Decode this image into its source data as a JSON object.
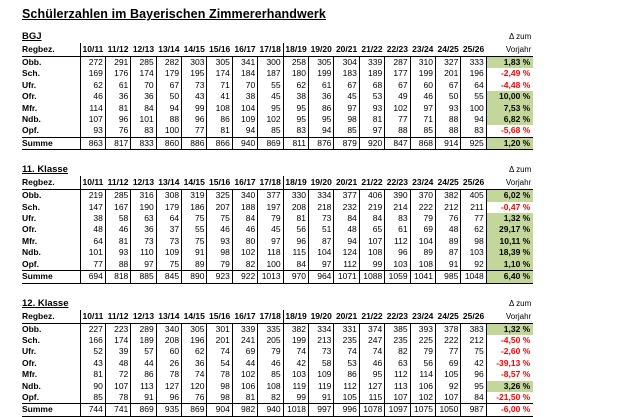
{
  "title": "Schülerzahlen im Bayerischen Zimmererhandwerk",
  "column_header_label": "Regbez.",
  "delta_header_line1": "Δ zum",
  "delta_header_line2": "Vorjahr",
  "columns": [
    "10/11",
    "11/12",
    "12/13",
    "13/14",
    "14/15",
    "15/16",
    "16/17",
    "17/18",
    "18/19",
    "19/20",
    "20/21",
    "21/22",
    "22/23",
    "23/24",
    "24/25",
    "25/26"
  ],
  "colors": {
    "positive_delta_bg": "#c4d79b",
    "negative_delta_text": "#ff0000",
    "text": "#000000",
    "background": "#ffffff"
  },
  "tables": [
    {
      "id": "bgj",
      "label": "BGJ",
      "rows": [
        {
          "name": "Obb.",
          "values": [
            272,
            291,
            285,
            282,
            303,
            305,
            341,
            300,
            258,
            305,
            304,
            339,
            287,
            310,
            327,
            333
          ],
          "delta": "1,83 %",
          "trend": "up"
        },
        {
          "name": "Sch.",
          "values": [
            169,
            176,
            174,
            179,
            195,
            174,
            184,
            187,
            180,
            199,
            183,
            189,
            177,
            199,
            201,
            196
          ],
          "delta": "-2,49 %",
          "trend": "down"
        },
        {
          "name": "Ufr.",
          "values": [
            62,
            61,
            70,
            67,
            73,
            71,
            70,
            55,
            62,
            61,
            67,
            68,
            67,
            60,
            67,
            64
          ],
          "delta": "-4,48 %",
          "trend": "down"
        },
        {
          "name": "Ofr.",
          "values": [
            46,
            36,
            36,
            50,
            43,
            41,
            38,
            45,
            38,
            36,
            45,
            53,
            49,
            46,
            50,
            55
          ],
          "delta": "10,00 %",
          "trend": "up"
        },
        {
          "name": "Mfr.",
          "values": [
            114,
            81,
            84,
            94,
            99,
            108,
            104,
            95,
            95,
            86,
            97,
            93,
            102,
            97,
            93,
            100
          ],
          "delta": "7,53 %",
          "trend": "up"
        },
        {
          "name": "Ndb.",
          "values": [
            107,
            96,
            101,
            88,
            96,
            86,
            109,
            102,
            95,
            95,
            98,
            81,
            77,
            71,
            88,
            94
          ],
          "delta": "6,82 %",
          "trend": "up"
        },
        {
          "name": "Opf.",
          "values": [
            93,
            76,
            83,
            100,
            77,
            81,
            94,
            85,
            83,
            94,
            85,
            97,
            88,
            85,
            88,
            83
          ],
          "delta": "-5,68 %",
          "trend": "down"
        }
      ],
      "sum": {
        "name": "Summe",
        "values": [
          863,
          817,
          833,
          860,
          886,
          866,
          940,
          869,
          811,
          876,
          879,
          920,
          847,
          868,
          914,
          925
        ],
        "delta": "1,20 %",
        "trend": "up"
      }
    },
    {
      "id": "klasse-11",
      "label": "11. Klasse",
      "rows": [
        {
          "name": "Obb.",
          "values": [
            219,
            285,
            316,
            308,
            319,
            325,
            340,
            377,
            330,
            334,
            377,
            406,
            390,
            370,
            382,
            405
          ],
          "delta": "6,02 %",
          "trend": "up"
        },
        {
          "name": "Sch.",
          "values": [
            147,
            167,
            190,
            179,
            186,
            207,
            188,
            197,
            208,
            218,
            232,
            219,
            214,
            222,
            212,
            211
          ],
          "delta": "-0,47 %",
          "trend": "down"
        },
        {
          "name": "Ufr.",
          "values": [
            38,
            58,
            63,
            64,
            75,
            75,
            84,
            79,
            81,
            73,
            84,
            84,
            83,
            79,
            76,
            77
          ],
          "delta": "1,32 %",
          "trend": "up"
        },
        {
          "name": "Ofr.",
          "values": [
            48,
            46,
            36,
            37,
            55,
            46,
            46,
            45,
            56,
            51,
            48,
            65,
            61,
            69,
            48,
            62
          ],
          "delta": "29,17 %",
          "trend": "up"
        },
        {
          "name": "Mfr.",
          "values": [
            64,
            81,
            73,
            73,
            75,
            93,
            80,
            97,
            96,
            87,
            94,
            107,
            112,
            104,
            89,
            98
          ],
          "delta": "10,11 %",
          "trend": "up"
        },
        {
          "name": "Ndb.",
          "values": [
            101,
            93,
            110,
            109,
            91,
            98,
            102,
            118,
            115,
            104,
            124,
            108,
            96,
            89,
            87,
            103
          ],
          "delta": "18,39 %",
          "trend": "up"
        },
        {
          "name": "Opf.",
          "values": [
            77,
            88,
            97,
            75,
            89,
            79,
            82,
            100,
            84,
            97,
            112,
            99,
            103,
            108,
            91,
            92
          ],
          "delta": "1,10 %",
          "trend": "up"
        }
      ],
      "sum": {
        "name": "Summe",
        "values": [
          694,
          818,
          885,
          845,
          890,
          923,
          922,
          1013,
          970,
          964,
          1071,
          1088,
          1059,
          1041,
          985,
          1048
        ],
        "delta": "6,40 %",
        "trend": "up"
      }
    },
    {
      "id": "klasse-12",
      "label": "12. Klasse",
      "rows": [
        {
          "name": "Obb.",
          "values": [
            227,
            223,
            289,
            340,
            305,
            301,
            339,
            335,
            382,
            334,
            331,
            374,
            385,
            393,
            378,
            383
          ],
          "delta": "1,32 %",
          "trend": "up"
        },
        {
          "name": "Sch.",
          "values": [
            166,
            174,
            189,
            208,
            196,
            201,
            241,
            205,
            199,
            213,
            235,
            247,
            235,
            225,
            222,
            212
          ],
          "delta": "-4,50 %",
          "trend": "down"
        },
        {
          "name": "Ufr.",
          "values": [
            52,
            39,
            57,
            60,
            62,
            74,
            69,
            79,
            74,
            73,
            74,
            74,
            82,
            79,
            77,
            75
          ],
          "delta": "-2,60 %",
          "trend": "down"
        },
        {
          "name": "Ofr.",
          "values": [
            43,
            48,
            44,
            26,
            36,
            54,
            44,
            46,
            42,
            58,
            53,
            46,
            63,
            56,
            69,
            42
          ],
          "delta": "-39,13 %",
          "trend": "down"
        },
        {
          "name": "Mfr.",
          "values": [
            81,
            72,
            86,
            78,
            74,
            78,
            102,
            85,
            103,
            109,
            86,
            95,
            112,
            114,
            105,
            96
          ],
          "delta": "-8,57 %",
          "trend": "down"
        },
        {
          "name": "Ndb.",
          "values": [
            90,
            107,
            113,
            127,
            120,
            98,
            106,
            108,
            119,
            119,
            112,
            127,
            113,
            106,
            92,
            95
          ],
          "delta": "3,26 %",
          "trend": "up"
        },
        {
          "name": "Opf.",
          "values": [
            85,
            78,
            91,
            96,
            76,
            98,
            81,
            82,
            99,
            91,
            105,
            115,
            107,
            102,
            107,
            84
          ],
          "delta": "-21,50 %",
          "trend": "down"
        }
      ],
      "sum": {
        "name": "Summe",
        "values": [
          744,
          741,
          869,
          935,
          869,
          904,
          982,
          940,
          1018,
          997,
          996,
          1078,
          1097,
          1075,
          1050,
          987
        ],
        "delta": "-6,00 %",
        "trend": "down"
      }
    }
  ]
}
